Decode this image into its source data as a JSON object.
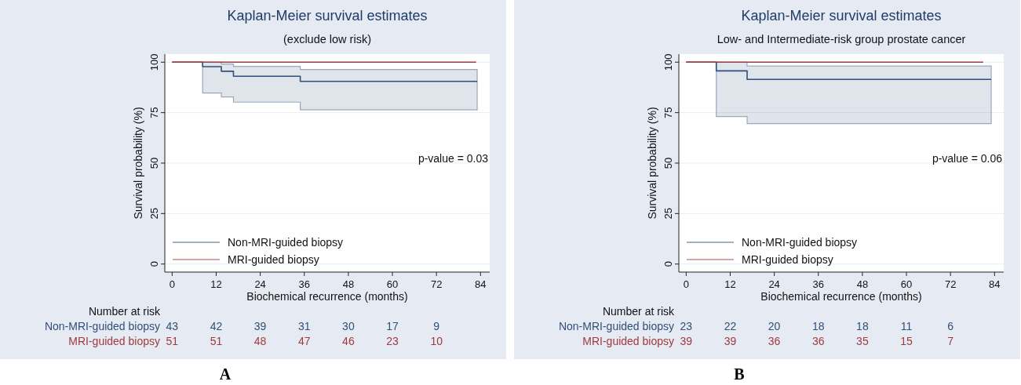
{
  "chart_data": [
    {
      "type": "step",
      "title": "Kaplan-Meier survival estimates",
      "subtitle": "(exclude low risk)",
      "xlabel": "Biochemical recurrence (months)",
      "ylabel": "Survival probability (%)",
      "xlim": [
        -2,
        86.5
      ],
      "ylim": [
        -4,
        104
      ],
      "xticks": [
        0,
        12,
        24,
        36,
        48,
        60,
        72,
        84
      ],
      "yticks": [
        0,
        25,
        50,
        75,
        100
      ],
      "grid": "y",
      "legend": "bottom left",
      "series": [
        {
          "name": "Non-MRI-guided biopsy",
          "color": "#2f5078",
          "x": [
            0,
            8.3,
            13.4,
            16.7,
            34.9,
            83.1
          ],
          "values": [
            100,
            97.8,
            95.5,
            93.0,
            90.5,
            90.5
          ],
          "lower": [
            100,
            84.7,
            82.8,
            80.2,
            76.4,
            76.4
          ],
          "upper": [
            100,
            100,
            99.1,
            97.9,
            96.4,
            96.4
          ]
        },
        {
          "name": "MRI-guided biopsy",
          "color": "#a03a3e",
          "x": [
            0,
            82.8
          ],
          "values": [
            100,
            100
          ]
        }
      ],
      "annotations": [
        "p-value = 0.03",
        "Number at risk",
        "Non-MRI-guided biopsy",
        "43",
        "42",
        "39",
        "31",
        "30",
        "17",
        "9",
        "MRI-guided biopsy",
        "51",
        "51",
        "48",
        "47",
        "46",
        "23",
        "10",
        "A"
      ]
    },
    {
      "type": "step",
      "title": "Kaplan-Meier survival estimates",
      "subtitle": "Low- and Intermediate-risk group prostate cancer",
      "xlabel": "Biochemical recurrence (months)",
      "ylabel": "Survival probability (%)",
      "xlim": [
        -2,
        86.5
      ],
      "ylim": [
        -4,
        104
      ],
      "xticks": [
        0,
        12,
        24,
        36,
        48,
        60,
        72,
        84
      ],
      "yticks": [
        0,
        25,
        50,
        75,
        100
      ],
      "grid": "y",
      "legend": "bottom left",
      "series": [
        {
          "name": "Non-MRI-guided biopsy",
          "color": "#2f5078",
          "x": [
            0,
            8.2,
            16.6,
            83.1
          ],
          "values": [
            100,
            95.7,
            91.5,
            91.5
          ],
          "lower": [
            100,
            73.1,
            69.6,
            69.6
          ],
          "upper": [
            100,
            100,
            98.1,
            98.1
          ]
        },
        {
          "name": "MRI-guided biopsy",
          "color": "#a03a3e",
          "x": [
            0,
            80.9
          ],
          "values": [
            100,
            100
          ]
        }
      ],
      "annotations": [
        "p-value = 0.06",
        "Number at risk",
        "Non-MRI-guided biopsy",
        "23",
        "22",
        "20",
        "18",
        "18",
        "11",
        "6",
        "MRI-guided biopsy",
        "39",
        "39",
        "36",
        "36",
        "35",
        "15",
        "7",
        "B"
      ]
    }
  ]
}
